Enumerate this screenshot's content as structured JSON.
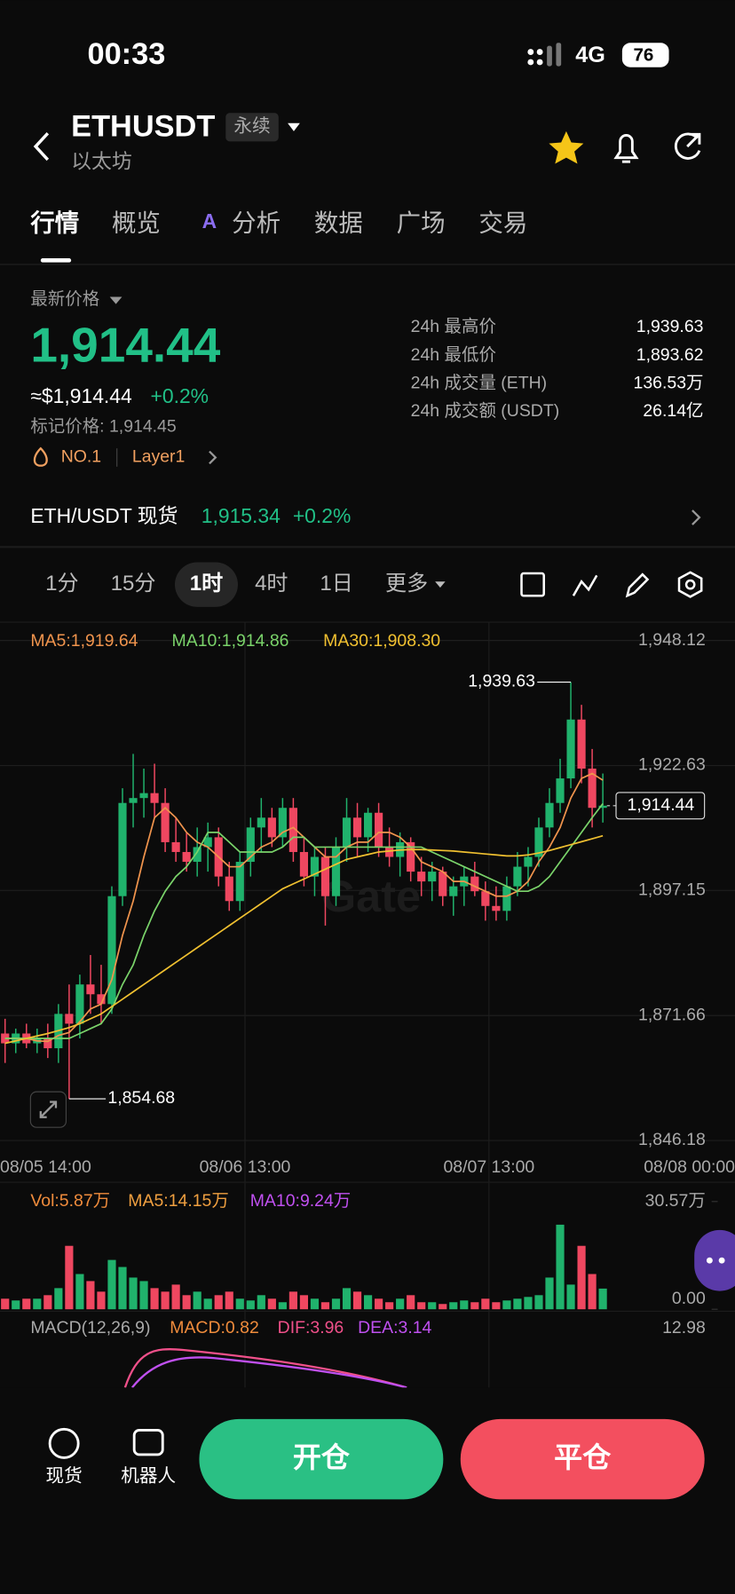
{
  "status": {
    "time": "00:33",
    "network": "4G",
    "battery": "76"
  },
  "header": {
    "symbol": "ETHUSDT",
    "badge": "永续",
    "name": "以太坊"
  },
  "tabs": [
    "行情",
    "概览",
    "分析",
    "数据",
    "广场",
    "交易"
  ],
  "price": {
    "label": "最新价格",
    "value": "1,914.44",
    "usd": "≈$1,914.44",
    "change": "+0.2%",
    "mark": "标记价格: 1,914.45",
    "rank": "NO.1",
    "tag": "Layer1"
  },
  "stats": [
    [
      "24h 最高价",
      "1,939.63"
    ],
    [
      "24h 最低价",
      "1,893.62"
    ],
    [
      "24h 成交量 (ETH)",
      "136.53万"
    ],
    [
      "24h 成交额 (USDT)",
      "26.14亿"
    ]
  ],
  "spot": {
    "label": "ETH/USDT 现货",
    "price": "1,915.34",
    "change": "+0.2%"
  },
  "intervals": [
    "1分",
    "15分",
    "1时",
    "4时",
    "1日",
    "更多"
  ],
  "chart_data": {
    "type": "candlestick",
    "up_color": "#20b26c",
    "down_color": "#ef4760",
    "ylim": [
      1846.18,
      1948.12
    ],
    "yticks": [
      {
        "value": 1948.12,
        "label": "1,948.12"
      },
      {
        "value": 1922.63,
        "label": "1,922.63"
      },
      {
        "value": 1897.15,
        "label": "1,897.15"
      },
      {
        "value": 1871.66,
        "label": "1,871.66"
      },
      {
        "value": 1846.18,
        "label": "1,846.18"
      }
    ],
    "xtick_labels": [
      "08/05 14:00",
      "08/06 13:00",
      "08/07 13:00",
      "08/08 00:00"
    ],
    "open": [
      1868,
      1866,
      1868,
      1866,
      1867,
      1865,
      1872,
      1870,
      1878,
      1876,
      1874,
      1896,
      1915,
      1916,
      1917,
      1915,
      1907,
      1905,
      1903,
      1906,
      1908,
      1900,
      1895,
      1903,
      1910,
      1912,
      1908,
      1914,
      1905,
      1900,
      1904,
      1896,
      1906,
      1912,
      1908,
      1913,
      1906,
      1904,
      1907,
      1901,
      1899,
      1901,
      1896,
      1898,
      1900,
      1897,
      1894,
      1893,
      1898,
      1902,
      1904,
      1910,
      1915,
      1920,
      1932,
      1922,
      1914
    ],
    "high": [
      1871,
      1869,
      1870,
      1869,
      1870,
      1874,
      1878,
      1880,
      1884,
      1882,
      1898,
      1918,
      1925,
      1922,
      1923,
      1918,
      1912,
      1909,
      1910,
      1911,
      1910,
      1903,
      1905,
      1912,
      1916,
      1914,
      1916,
      1916,
      1908,
      1906,
      1906,
      1908,
      1916,
      1915,
      1914,
      1915,
      1910,
      1909,
      1908,
      1904,
      1903,
      1902,
      1900,
      1902,
      1903,
      1899,
      1898,
      1900,
      1905,
      1906,
      1912,
      1918,
      1924,
      1939.63,
      1935,
      1926,
      1921
    ],
    "low": [
      1862,
      1864,
      1865,
      1864,
      1863,
      1862,
      1854.68,
      1867,
      1872,
      1870,
      1872,
      1894,
      1910,
      1912,
      1912,
      1905,
      1903,
      1901,
      1900,
      1901,
      1898,
      1893,
      1893,
      1900,
      1905,
      1906,
      1906,
      1903,
      1898,
      1896,
      1890,
      1894,
      1903,
      1904,
      1905,
      1904,
      1902,
      1900,
      1899,
      1896,
      1895,
      1894,
      1892,
      1894,
      1896,
      1891,
      1891,
      1891,
      1896,
      1898,
      1902,
      1908,
      1913,
      1918,
      1919,
      1910,
      1911
    ],
    "close": [
      1866,
      1868,
      1866,
      1867,
      1865,
      1872,
      1870,
      1878,
      1876,
      1874,
      1896,
      1915,
      1916,
      1917,
      1915,
      1907,
      1905,
      1903,
      1906,
      1908,
      1900,
      1895,
      1903,
      1910,
      1912,
      1908,
      1914,
      1905,
      1900,
      1904,
      1896,
      1906,
      1912,
      1908,
      1913,
      1906,
      1904,
      1907,
      1901,
      1899,
      1901,
      1896,
      1898,
      1900,
      1897,
      1894,
      1893,
      1898,
      1902,
      1904,
      1910,
      1915,
      1920,
      1932,
      1922,
      1914,
      1914.44
    ],
    "ma": [
      {
        "label": "MA5:1,919.64",
        "color": "#f0944d",
        "values": [
          1867,
          1867,
          1867,
          1866.5,
          1866.4,
          1867.6,
          1868.2,
          1870.4,
          1873,
          1874,
          1879,
          1888,
          1895,
          1904,
          1912,
          1914,
          1912,
          1909,
          1907,
          1906,
          1904,
          1902,
          1902,
          1904,
          1906,
          1907,
          1909,
          1910,
          1908,
          1906,
          1904,
          1904,
          1906,
          1907,
          1907,
          1909,
          1909,
          1908,
          1906,
          1903,
          1902,
          1901,
          1899,
          1899,
          1898,
          1897,
          1896,
          1896,
          1897,
          1899,
          1903,
          1906,
          1910,
          1916,
          1920,
          1921,
          1919.64
        ]
      },
      {
        "label": "MA10:1,914.86",
        "color": "#7ad36a",
        "values": [
          1867,
          1867,
          1867,
          1867,
          1867,
          1867,
          1867,
          1868,
          1869,
          1870,
          1873,
          1878,
          1882,
          1888,
          1893,
          1897,
          1900,
          1902,
          1905,
          1909,
          1909,
          1907,
          1905,
          1905,
          1905,
          1905,
          1906,
          1908,
          1908,
          1906,
          1906,
          1906,
          1906,
          1906,
          1906,
          1906,
          1906,
          1906,
          1906,
          1906,
          1905,
          1904,
          1903,
          1902,
          1901,
          1900,
          1899,
          1898,
          1897,
          1897,
          1898,
          1900,
          1903,
          1906,
          1909,
          1912,
          1914.86
        ]
      },
      {
        "label": "MA30:1,908.30",
        "color": "#f0c030",
        "values": [
          1866,
          1866.5,
          1867,
          1867.5,
          1868,
          1868.6,
          1869.2,
          1870,
          1871,
          1872,
          1873.5,
          1875,
          1876.5,
          1878,
          1879.5,
          1881,
          1882.5,
          1884,
          1885.5,
          1887,
          1888.5,
          1890,
          1891.5,
          1893,
          1894.5,
          1896,
          1897.5,
          1898.5,
          1899.5,
          1900.5,
          1901.5,
          1902.5,
          1903.5,
          1904,
          1904.5,
          1905,
          1905.2,
          1905.4,
          1905.5,
          1905.5,
          1905.4,
          1905.3,
          1905.2,
          1905,
          1904.8,
          1904.6,
          1904.4,
          1904.2,
          1904.2,
          1904.4,
          1904.8,
          1905.3,
          1905.9,
          1906.5,
          1907.1,
          1907.7,
          1908.3
        ]
      }
    ],
    "annotations": {
      "high": "1,939.63",
      "low": "1,854.68",
      "current": "1,914.44"
    },
    "volume": {
      "labels": [
        {
          "text": "Vol:5.87万",
          "color": "#f08c3c"
        },
        {
          "text": "MA5:14.15万",
          "color": "#f0a040"
        },
        {
          "text": "MA10:9.24万",
          "color": "#c050f0"
        }
      ],
      "ylim": [
        0,
        30.57
      ],
      "yticks": [
        {
          "value": 30.57,
          "label": "30.57万"
        },
        {
          "value": 0,
          "label": "0.00"
        }
      ],
      "values": [
        3,
        2.5,
        3,
        3,
        4,
        6,
        18,
        10,
        8,
        5,
        14,
        12,
        9,
        8,
        6,
        5,
        7,
        4,
        5,
        3,
        4,
        5,
        3,
        2.5,
        4,
        3,
        2,
        5,
        4,
        3,
        2,
        3,
        6,
        5,
        4,
        3,
        2,
        3,
        4,
        2,
        2,
        1.5,
        2,
        2.5,
        2,
        3,
        2,
        2.5,
        3,
        3.5,
        4,
        9,
        24,
        7,
        18,
        10,
        5.87
      ]
    },
    "macd": {
      "labels": [
        {
          "text": "MACD(12,26,9)",
          "color": "#aaaaaa"
        },
        {
          "text": "MACD:0.82",
          "color": "#f08c3c"
        },
        {
          "text": "DIF:3.96",
          "color": "#f0508a"
        },
        {
          "text": "DEA:3.14",
          "color": "#c050f0"
        }
      ],
      "axis": "12.98"
    }
  },
  "bottom": {
    "spot": "现货",
    "robot": "机器人",
    "open": "开仓",
    "close": "平仓"
  }
}
